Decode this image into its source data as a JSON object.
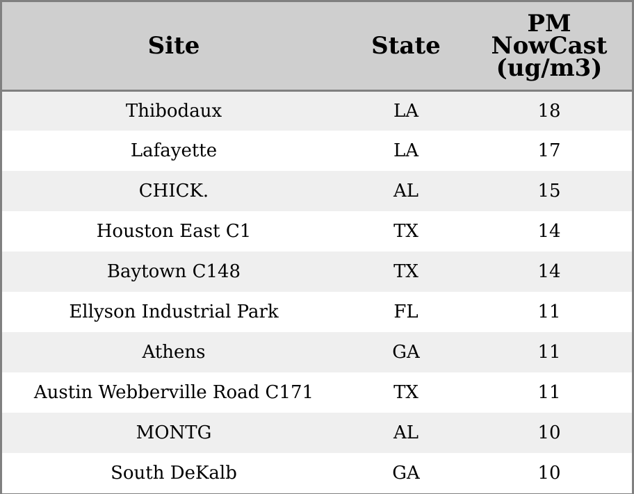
{
  "chart_data": {
    "type": "table",
    "columns": [
      "Site",
      "State",
      "PM NowCast (ug/m3)"
    ],
    "header_lines": {
      "site": [
        "Site"
      ],
      "state": [
        "State"
      ],
      "pm": [
        "PM",
        "NowCast",
        "(ug/m3)"
      ]
    },
    "rows": [
      {
        "site": "Thibodaux",
        "state": "LA",
        "pm": "18"
      },
      {
        "site": "Lafayette",
        "state": "LA",
        "pm": "17"
      },
      {
        "site": "CHICK.",
        "state": "AL",
        "pm": "15"
      },
      {
        "site": "Houston East C1",
        "state": "TX",
        "pm": "14"
      },
      {
        "site": "Baytown C148",
        "state": "TX",
        "pm": "14"
      },
      {
        "site": "Ellyson Industrial Park",
        "state": "FL",
        "pm": "11"
      },
      {
        "site": "Athens",
        "state": "GA",
        "pm": "11"
      },
      {
        "site": "Austin Webberville Road C171",
        "state": "TX",
        "pm": "11"
      },
      {
        "site": "MONTG",
        "state": "AL",
        "pm": "10"
      },
      {
        "site": "South DeKalb",
        "state": "GA",
        "pm": "10"
      }
    ]
  },
  "colors": {
    "header_bg": "#cfcfcf",
    "row_alt_bg": "#efefef",
    "row_bg": "#ffffff",
    "border": "#808080"
  }
}
